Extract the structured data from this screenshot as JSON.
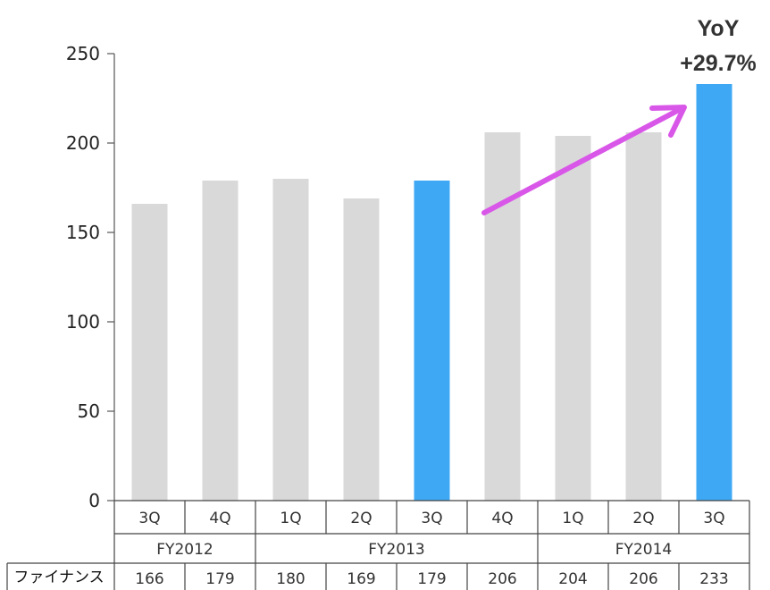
{
  "chart_data": {
    "type": "bar",
    "title": "",
    "xlabel": "",
    "ylabel": "",
    "ylim": [
      0,
      250
    ],
    "yticks": [
      0,
      50,
      100,
      150,
      200,
      250
    ],
    "categories": [
      "3Q",
      "4Q",
      "1Q",
      "2Q",
      "3Q",
      "4Q",
      "1Q",
      "2Q",
      "3Q"
    ],
    "groups": [
      {
        "label": "FY2012",
        "count": 2
      },
      {
        "label": "FY2013",
        "count": 4
      },
      {
        "label": "FY2014",
        "count": 3
      }
    ],
    "series": [
      {
        "name": "ファイナンス",
        "values": [
          166,
          179,
          180,
          169,
          179,
          206,
          204,
          206,
          233
        ]
      }
    ],
    "highlight_indices": [
      4,
      8
    ],
    "colors": {
      "bar": "#d9d9d9",
      "highlight": "#3ea8f5",
      "arrow": "#d957e8",
      "axis": "#555555"
    },
    "annotation": {
      "line1": "YoY",
      "line2": "+29.7%"
    },
    "grid": false,
    "legend": "none"
  }
}
